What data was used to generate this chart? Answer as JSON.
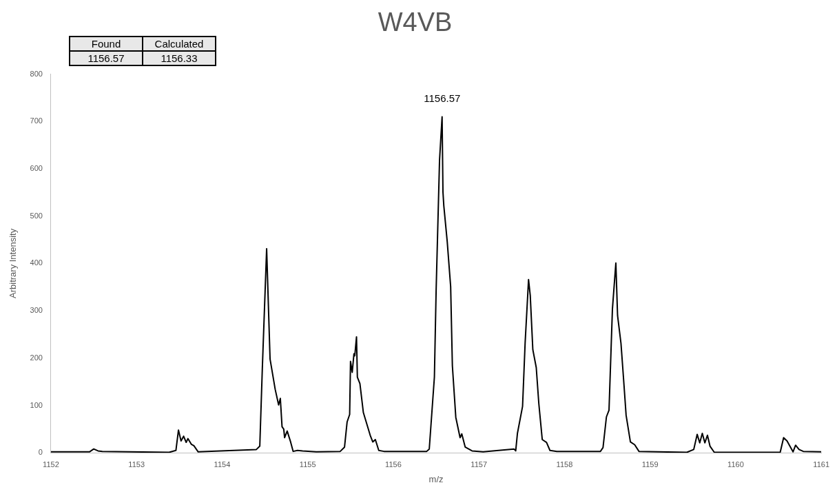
{
  "chart_data": {
    "type": "line",
    "title": "W4VB",
    "xlabel": "m/z",
    "ylabel": "Arbitrary Intensity",
    "xlim": [
      1152,
      1161
    ],
    "xticks": [
      1152,
      1153,
      1154,
      1155,
      1156,
      1157,
      1158,
      1159,
      1160,
      1161
    ],
    "ylim": [
      0,
      800
    ],
    "yticks": [
      0,
      100,
      200,
      300,
      400,
      500,
      600,
      700,
      800
    ],
    "grid": false,
    "legend": false,
    "marker": "none",
    "line_style": "solid",
    "annotations": [
      "Found",
      "Calculated",
      "1156.57",
      "1156.33",
      {
        "text": "1156.57",
        "x": 1156.57,
        "y": 710
      }
    ],
    "series": [
      {
        "color": "#000000",
        "x": [
          1152,
          1152.45,
          1152.5,
          1152.55,
          1152.6,
          1153.38,
          1153.46,
          1153.49,
          1153.52,
          1153.55,
          1153.58,
          1153.6,
          1153.64,
          1153.67,
          1153.72,
          1154.4,
          1154.44,
          1154.47,
          1154.52,
          1154.56,
          1154.62,
          1154.66,
          1154.68,
          1154.7,
          1154.72,
          1154.73,
          1154.76,
          1154.8,
          1154.83,
          1154.88,
          1154.94,
          1155.1,
          1155.38,
          1155.43,
          1155.46,
          1155.49,
          1155.5,
          1155.52,
          1155.54,
          1155.55,
          1155.57,
          1155.58,
          1155.61,
          1155.65,
          1155.69,
          1155.73,
          1155.76,
          1155.79,
          1155.83,
          1155.89,
          1156.39,
          1156.42,
          1156.48,
          1156.5,
          1156.54,
          1156.57,
          1156.58,
          1156.59,
          1156.63,
          1156.67,
          1156.69,
          1156.73,
          1156.78,
          1156.8,
          1156.84,
          1156.92,
          1157.05,
          1157.41,
          1157.43,
          1157.45,
          1157.51,
          1157.54,
          1157.58,
          1157.6,
          1157.63,
          1157.67,
          1157.7,
          1157.74,
          1157.79,
          1157.83,
          1157.91,
          1158.42,
          1158.45,
          1158.49,
          1158.52,
          1158.56,
          1158.6,
          1158.62,
          1158.66,
          1158.69,
          1158.72,
          1158.77,
          1158.82,
          1158.87,
          1159.43,
          1159.51,
          1159.55,
          1159.58,
          1159.61,
          1159.64,
          1159.67,
          1159.7,
          1159.75,
          1160.52,
          1160.56,
          1160.6,
          1160.67,
          1160.7,
          1160.74,
          1160.79,
          1161
        ],
        "values": [
          2,
          2,
          8,
          4,
          3,
          1,
          5,
          48,
          25,
          35,
          22,
          30,
          18,
          15,
          2,
          7,
          14,
          180,
          431,
          198,
          134,
          101,
          115,
          55,
          50,
          32,
          46,
          23,
          3,
          5,
          4,
          2,
          3,
          12,
          65,
          81,
          193,
          170,
          209,
          205,
          245,
          160,
          146,
          85,
          61,
          37,
          23,
          28,
          5,
          3,
          3,
          8,
          160,
          341,
          618,
          710,
          551,
          522,
          446,
          351,
          184,
          75,
          32,
          40,
          12,
          4,
          2,
          8,
          4,
          41,
          98,
          232,
          366,
          332,
          218,
          180,
          104,
          28,
          22,
          5,
          3,
          3,
          11,
          76,
          90,
          304,
          401,
          290,
          231,
          156,
          79,
          23,
          17,
          3,
          1,
          7,
          39,
          21,
          41,
          21,
          37,
          14,
          1,
          1,
          32,
          25,
          2,
          16,
          7,
          3,
          2
        ]
      }
    ]
  }
}
